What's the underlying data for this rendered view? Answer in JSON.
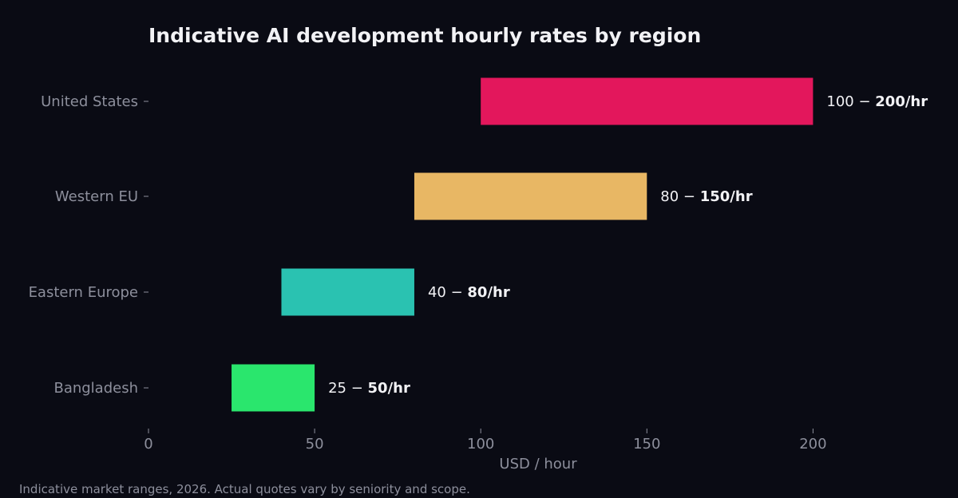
{
  "chart_data": {
    "type": "bar",
    "orientation": "horizontal",
    "title": "Indicative AI development hourly rates by region",
    "xlabel": "USD / hour",
    "ylabel": "",
    "xlim": [
      0,
      230
    ],
    "xticks": [
      0,
      50,
      100,
      150,
      200
    ],
    "grid": false,
    "categories": [
      "United States",
      "Western EU",
      "Eastern Europe",
      "Bangladesh"
    ],
    "ranges": [
      {
        "low": 100,
        "high": 200,
        "label_prefix": "100 − ",
        "label_suffix": "200/hr",
        "color": "#e3175c"
      },
      {
        "low": 80,
        "high": 150,
        "label_prefix": "80 − ",
        "label_suffix": "150/hr",
        "color": "#e8b764"
      },
      {
        "low": 40,
        "high": 80,
        "label_prefix": "40 − ",
        "label_suffix": "80/hr",
        "color": "#2ac2b1"
      },
      {
        "low": 25,
        "high": 50,
        "label_prefix": "25 − ",
        "label_suffix": "50/hr",
        "color": "#2ae66d"
      }
    ]
  },
  "footnote": "Indicative market ranges, 2026. Actual quotes vary by seniority and scope.",
  "colors": {
    "background": "#0a0b14",
    "text": "#f2f2f5",
    "muted": "#8d8f9c"
  }
}
